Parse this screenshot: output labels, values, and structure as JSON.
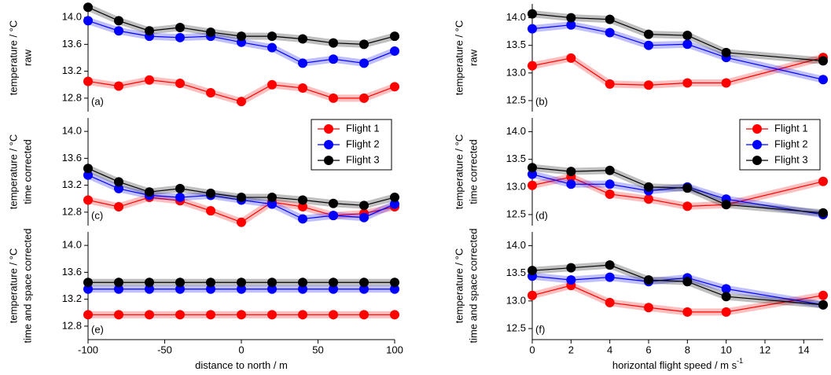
{
  "chart_data": [
    {
      "type": "line",
      "panel_label": "(a)",
      "ylabel": [
        "temperature / °C",
        "raw"
      ],
      "x": [
        -100,
        -80,
        -60,
        -40,
        -20,
        0,
        20,
        40,
        60,
        80,
        100
      ],
      "xlim": [
        -100,
        100
      ],
      "ylim": [
        12.6,
        14.2
      ],
      "yticks": [
        12.8,
        13.2,
        13.6,
        {
          "value": 14,
          "label": "14.0"
        }
      ],
      "series": [
        {
          "name": "Flight 1",
          "color": "#ff0000",
          "values": [
            13.05,
            12.98,
            13.07,
            13.02,
            12.88,
            12.75,
            13.0,
            12.95,
            12.8,
            12.8,
            12.97
          ]
        },
        {
          "name": "Flight 2",
          "color": "#0000ff",
          "values": [
            13.95,
            13.8,
            13.72,
            13.7,
            13.72,
            13.63,
            13.55,
            13.32,
            13.38,
            13.32,
            13.5
          ]
        },
        {
          "name": "Flight 3",
          "color": "#000000",
          "values": [
            14.15,
            13.95,
            13.8,
            13.85,
            13.78,
            13.72,
            13.72,
            13.68,
            13.62,
            13.6,
            13.72
          ]
        }
      ]
    },
    {
      "type": "line",
      "panel_label": "(c)",
      "ylabel": [
        "temperature / °C",
        "time corrected"
      ],
      "legend": "upper right",
      "x": [
        -100,
        -80,
        -60,
        -40,
        -20,
        0,
        20,
        40,
        60,
        80,
        100
      ],
      "xlim": [
        -100,
        100
      ],
      "ylim": [
        12.6,
        14.2
      ],
      "yticks": [
        12.8,
        13.2,
        13.6,
        {
          "value": 14,
          "label": "14.0"
        }
      ],
      "series": [
        {
          "name": "Flight 1",
          "color": "#ff0000",
          "values": [
            12.98,
            12.88,
            13.02,
            12.97,
            12.82,
            12.65,
            12.95,
            12.88,
            12.75,
            12.78,
            12.88
          ]
        },
        {
          "name": "Flight 2",
          "color": "#0000ff",
          "values": [
            13.35,
            13.15,
            13.05,
            13.02,
            13.05,
            12.98,
            12.92,
            12.7,
            12.75,
            12.72,
            12.92
          ]
        },
        {
          "name": "Flight 3",
          "color": "#000000",
          "values": [
            13.45,
            13.25,
            13.1,
            13.15,
            13.08,
            13.02,
            13.02,
            12.98,
            12.93,
            12.9,
            13.02
          ]
        }
      ]
    },
    {
      "type": "line",
      "panel_label": "(e)",
      "ylabel": [
        "temperature / °C",
        "time and space corrected"
      ],
      "xlabel": "distance to north / m",
      "x": [
        -100,
        -80,
        -60,
        -40,
        -20,
        0,
        20,
        40,
        60,
        80,
        100
      ],
      "xlim": [
        -100,
        100
      ],
      "xticks": [
        -100,
        -50,
        0,
        50,
        100
      ],
      "ylim": [
        12.6,
        14.2
      ],
      "yticks": [
        12.8,
        13.2,
        13.6,
        {
          "value": 14,
          "label": "14.0"
        }
      ],
      "series": [
        {
          "name": "Flight 1",
          "color": "#ff0000",
          "values": [
            12.97,
            12.97,
            12.97,
            12.97,
            12.97,
            12.97,
            12.97,
            12.97,
            12.97,
            12.97,
            12.97
          ]
        },
        {
          "name": "Flight 2",
          "color": "#0000ff",
          "values": [
            13.35,
            13.35,
            13.35,
            13.35,
            13.35,
            13.35,
            13.35,
            13.35,
            13.35,
            13.35,
            13.35
          ]
        },
        {
          "name": "Flight 3",
          "color": "#000000",
          "values": [
            13.45,
            13.45,
            13.45,
            13.45,
            13.45,
            13.45,
            13.45,
            13.45,
            13.45,
            13.45,
            13.45
          ]
        }
      ]
    },
    {
      "type": "line",
      "panel_label": "(b)",
      "ylabel": [
        "temperature / °C",
        "raw"
      ],
      "x": [
        0,
        2,
        4,
        6,
        8,
        10,
        15
      ],
      "xlim": [
        0,
        15
      ],
      "ylim": [
        12.3,
        14.25
      ],
      "yticks": [
        12.5,
        {
          "value": 13,
          "label": "13.0"
        },
        13.5,
        {
          "value": 14,
          "label": "14.0"
        }
      ],
      "series": [
        {
          "name": "Flight 1",
          "color": "#ff0000",
          "values": [
            13.13,
            13.27,
            12.8,
            12.78,
            12.82,
            12.82,
            13.28
          ]
        },
        {
          "name": "Flight 2",
          "color": "#0000ff",
          "values": [
            13.8,
            13.87,
            13.73,
            13.5,
            13.52,
            13.28,
            12.88
          ]
        },
        {
          "name": "Flight 3",
          "color": "#000000",
          "values": [
            14.07,
            14.0,
            13.97,
            13.7,
            13.68,
            13.37,
            13.22
          ]
        }
      ]
    },
    {
      "type": "line",
      "panel_label": "(d)",
      "ylabel": [
        "temperature / °C",
        "time corrected"
      ],
      "legend": "upper right",
      "x": [
        0,
        2,
        4,
        6,
        8,
        10,
        15
      ],
      "xlim": [
        0,
        15
      ],
      "ylim": [
        12.3,
        14.25
      ],
      "yticks": [
        12.5,
        {
          "value": 13,
          "label": "13.0"
        },
        13.5,
        {
          "value": 14,
          "label": "14.0"
        }
      ],
      "series": [
        {
          "name": "Flight 1",
          "color": "#ff0000",
          "values": [
            13.03,
            13.18,
            12.87,
            12.78,
            12.65,
            12.68,
            13.1
          ]
        },
        {
          "name": "Flight 2",
          "color": "#0000ff",
          "values": [
            13.23,
            13.05,
            13.05,
            12.93,
            13.0,
            12.78,
            12.5
          ]
        },
        {
          "name": "Flight 3",
          "color": "#000000",
          "values": [
            13.35,
            13.28,
            13.3,
            13.0,
            12.98,
            12.68,
            12.53
          ]
        }
      ]
    },
    {
      "type": "line",
      "panel_label": "(f)",
      "ylabel": [
        "temperature / °C",
        "time and space corrected"
      ],
      "xlabel": "horizontal flight speed / m s",
      "xlabel_superscript": "-1",
      "x": [
        0,
        2,
        4,
        6,
        8,
        10,
        15
      ],
      "xlim": [
        0,
        15
      ],
      "xticks": [
        0,
        2,
        4,
        6,
        8,
        10,
        12,
        14
      ],
      "ylim": [
        12.3,
        14.25
      ],
      "yticks": [
        12.5,
        {
          "value": 13,
          "label": "13.0"
        },
        13.5,
        {
          "value": 14,
          "label": "14.0"
        }
      ],
      "series": [
        {
          "name": "Flight 1",
          "color": "#ff0000",
          "values": [
            13.1,
            13.28,
            12.97,
            12.88,
            12.8,
            12.8,
            13.1
          ]
        },
        {
          "name": "Flight 2",
          "color": "#0000ff",
          "values": [
            13.45,
            13.38,
            13.43,
            13.35,
            13.42,
            13.22,
            12.93
          ]
        },
        {
          "name": "Flight 3",
          "color": "#000000",
          "values": [
            13.55,
            13.6,
            13.65,
            13.38,
            13.35,
            13.08,
            12.93
          ]
        }
      ]
    }
  ]
}
